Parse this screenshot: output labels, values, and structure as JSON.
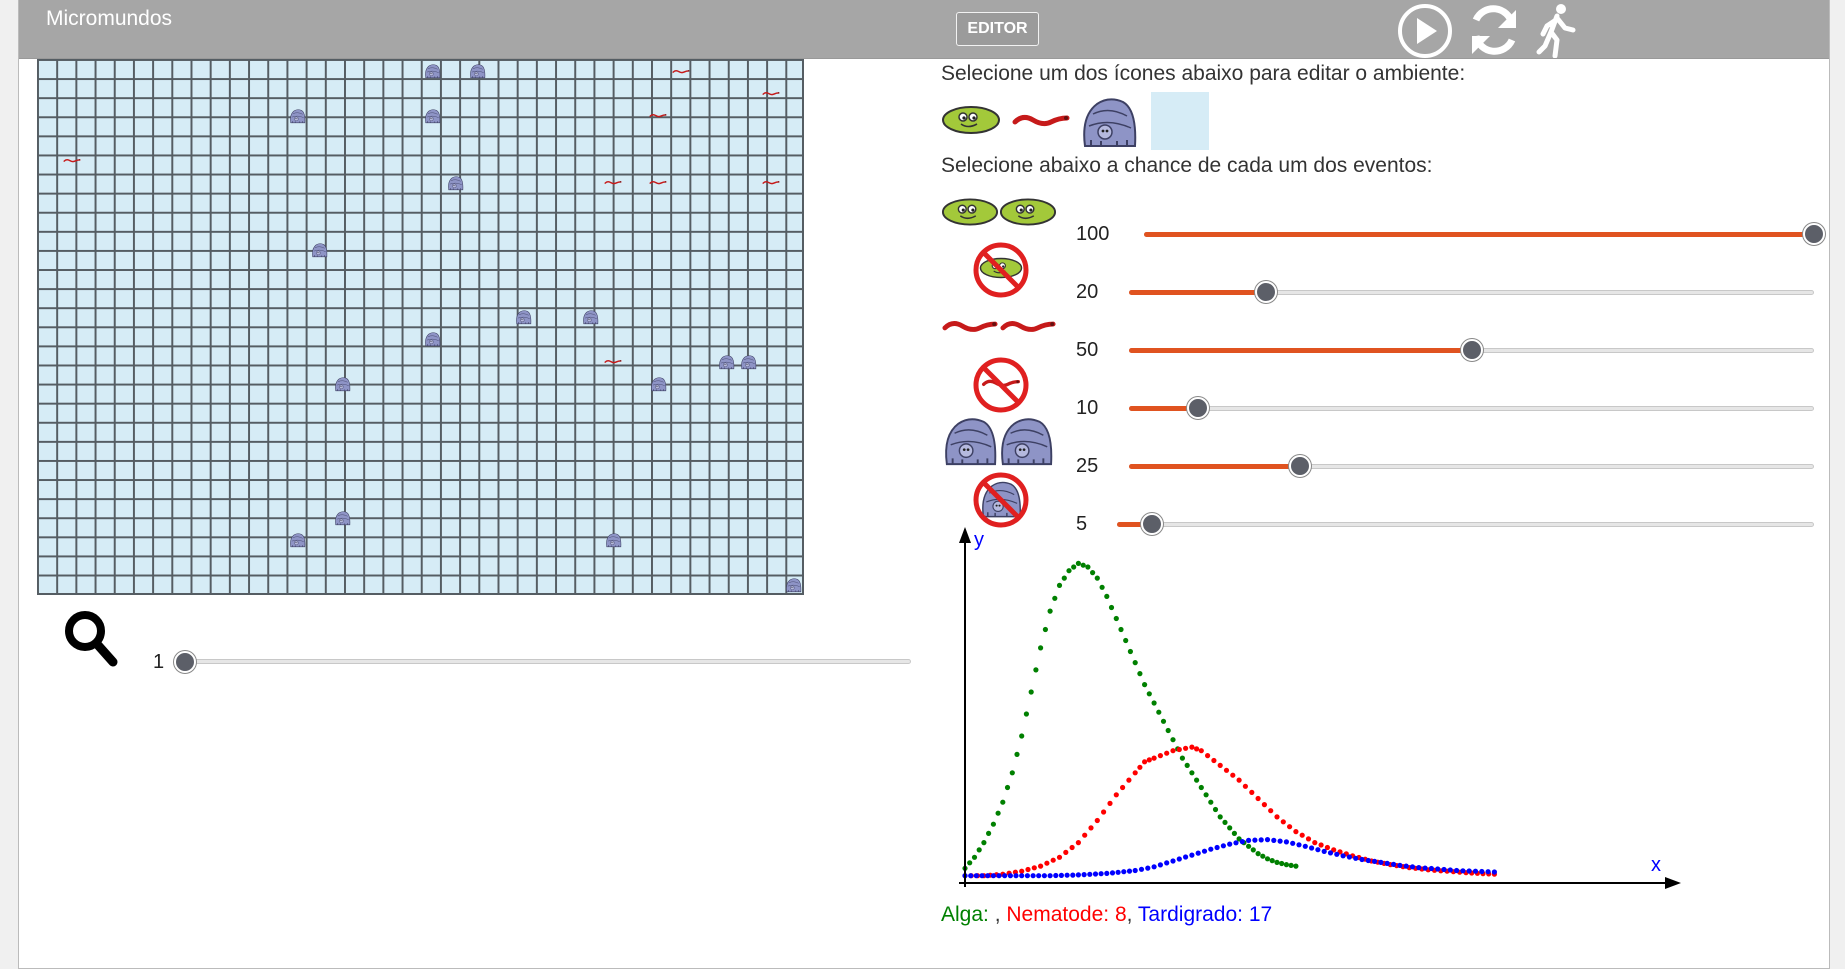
{
  "app": {
    "title": "Micromundos"
  },
  "toolbar": {
    "editor_label": "EDITOR",
    "icons": [
      "play-icon",
      "refresh-icon",
      "walk-icon"
    ]
  },
  "grid": {
    "cols": 34,
    "rows": 24,
    "fill": "#d6ecf6",
    "line": "#555d63",
    "tardigrades": [
      [
        17,
        0
      ],
      [
        19,
        0
      ],
      [
        11,
        2
      ],
      [
        17,
        2
      ],
      [
        18,
        5
      ],
      [
        12,
        8
      ],
      [
        21,
        11
      ],
      [
        24,
        11
      ],
      [
        17,
        12
      ],
      [
        13,
        14
      ],
      [
        27,
        14
      ],
      [
        30,
        13
      ],
      [
        31,
        13
      ],
      [
        13,
        20
      ],
      [
        11,
        21
      ],
      [
        25,
        21
      ],
      [
        33,
        23
      ]
    ],
    "nematodes": [
      [
        28,
        0
      ],
      [
        32,
        1
      ],
      [
        27,
        2
      ],
      [
        1,
        4
      ],
      [
        25,
        5
      ],
      [
        27,
        5
      ],
      [
        32,
        5
      ],
      [
        25,
        13
      ]
    ]
  },
  "zoom": {
    "value": "1",
    "fraction": 0.0,
    "icon": "search-icon"
  },
  "editor_panel": {
    "instruction1": "Selecione um dos ícones abaixo para editar o ambiente:",
    "instruction2": "Selecione abaixo a chance de cada um dos eventos:",
    "palette": [
      "alga-icon",
      "nematode-icon",
      "tardigrade-icon",
      "empty-cell-swatch"
    ]
  },
  "events": [
    {
      "name": "alga-reproduction",
      "value": "100",
      "fraction": 1.0
    },
    {
      "name": "alga-death",
      "value": "20",
      "fraction": 0.2
    },
    {
      "name": "nematode-reproduction",
      "value": "50",
      "fraction": 0.5
    },
    {
      "name": "nematode-death",
      "value": "10",
      "fraction": 0.1
    },
    {
      "name": "tardigrade-reproduction",
      "value": "25",
      "fraction": 0.25
    },
    {
      "name": "tardigrade-death",
      "value": "5",
      "fraction": 0.05
    }
  ],
  "chart_data": {
    "type": "scatter",
    "xlabel": "x",
    "ylabel": "y",
    "series": [
      {
        "name": "Alga",
        "color": "#008000",
        "points": [
          [
            0,
            2
          ],
          [
            2,
            3.5
          ],
          [
            4,
            5.5
          ],
          [
            6,
            8
          ],
          [
            8,
            11
          ],
          [
            10,
            15
          ],
          [
            12,
            20
          ],
          [
            14,
            26
          ],
          [
            16,
            32
          ],
          [
            18,
            37
          ],
          [
            20,
            40.5
          ],
          [
            22,
            42.5
          ],
          [
            24,
            43.5
          ],
          [
            26,
            43
          ],
          [
            28,
            41.5
          ],
          [
            30,
            39
          ],
          [
            32,
            36
          ],
          [
            34,
            33
          ],
          [
            36,
            30
          ],
          [
            38,
            27
          ],
          [
            40,
            24.5
          ],
          [
            42,
            22
          ],
          [
            44,
            19.5
          ],
          [
            46,
            17
          ],
          [
            48,
            15
          ],
          [
            50,
            13
          ],
          [
            52,
            11
          ],
          [
            54,
            9
          ],
          [
            56,
            7.5
          ],
          [
            58,
            6
          ],
          [
            60,
            5
          ],
          [
            62,
            4
          ],
          [
            64,
            3.3
          ],
          [
            66,
            2.8
          ],
          [
            68,
            2.5
          ],
          [
            70,
            2.3
          ]
        ]
      },
      {
        "name": "Nematode",
        "color": "#ff0000",
        "points": [
          [
            0,
            1
          ],
          [
            4,
            1
          ],
          [
            8,
            1.2
          ],
          [
            12,
            1.6
          ],
          [
            16,
            2.3
          ],
          [
            20,
            3.5
          ],
          [
            24,
            5.5
          ],
          [
            28,
            8.5
          ],
          [
            32,
            12
          ],
          [
            36,
            15
          ],
          [
            38,
            16.5
          ],
          [
            40,
            17
          ],
          [
            44,
            18
          ],
          [
            48,
            18.5
          ],
          [
            50,
            18
          ],
          [
            54,
            16
          ],
          [
            58,
            14
          ],
          [
            62,
            11.5
          ],
          [
            66,
            9
          ],
          [
            70,
            7
          ],
          [
            74,
            5.5
          ],
          [
            78,
            4.5
          ],
          [
            82,
            3.7
          ],
          [
            86,
            3
          ],
          [
            90,
            2.5
          ],
          [
            94,
            2.1
          ],
          [
            98,
            1.8
          ],
          [
            102,
            1.6
          ],
          [
            106,
            1.4
          ],
          [
            112,
            1.2
          ]
        ]
      },
      {
        "name": "Tardigrado",
        "color": "#0000ff",
        "points": [
          [
            0,
            1
          ],
          [
            6,
            1
          ],
          [
            12,
            1
          ],
          [
            18,
            1
          ],
          [
            24,
            1.1
          ],
          [
            30,
            1.3
          ],
          [
            36,
            1.7
          ],
          [
            40,
            2.2
          ],
          [
            44,
            3
          ],
          [
            48,
            3.8
          ],
          [
            52,
            4.6
          ],
          [
            56,
            5.3
          ],
          [
            60,
            5.8
          ],
          [
            64,
            5.9
          ],
          [
            68,
            5.6
          ],
          [
            72,
            5
          ],
          [
            76,
            4.3
          ],
          [
            80,
            3.7
          ],
          [
            84,
            3.2
          ],
          [
            88,
            2.8
          ],
          [
            92,
            2.4
          ],
          [
            96,
            2.1
          ],
          [
            100,
            1.9
          ],
          [
            104,
            1.7
          ],
          [
            108,
            1.6
          ],
          [
            112,
            1.5
          ]
        ]
      }
    ],
    "xlim": [
      0,
      150
    ],
    "ylim": [
      0,
      46
    ]
  },
  "legend": {
    "alga_label": "Alga: ",
    "alga_value": "",
    "sep1": ", ",
    "nematode_label": "Nematode: ",
    "nematode_value": "8",
    "sep2": ", ",
    "tardigrade_label": "Tardigrado: ",
    "tardigrade_value": "17",
    "colors": {
      "alga": "#008000",
      "nematode": "#ff0000",
      "tardigrade": "#0000ff"
    }
  }
}
